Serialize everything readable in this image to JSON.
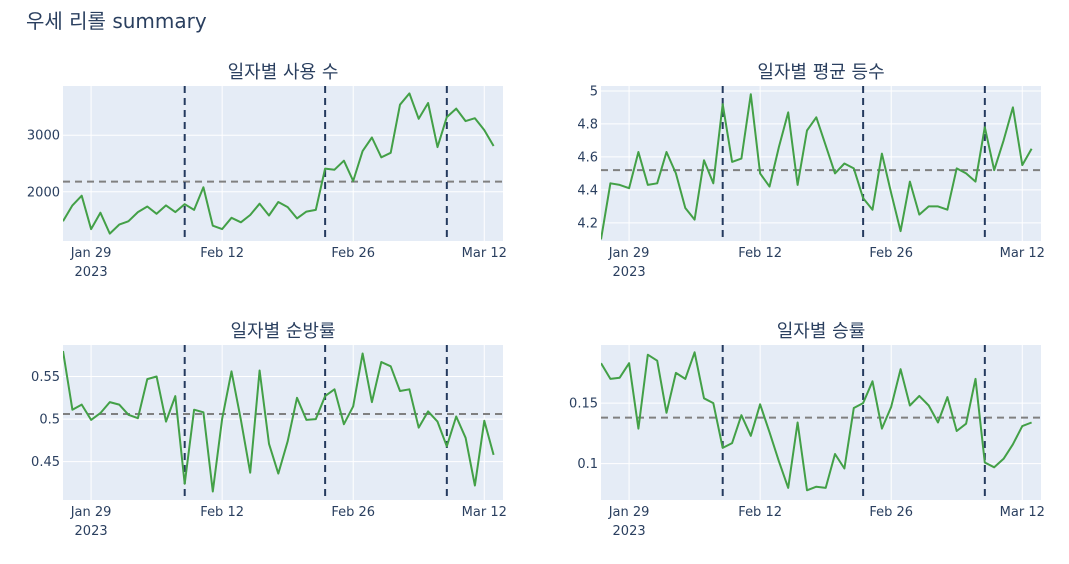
{
  "title": "우세 리롤 summary",
  "colors": {
    "plot_bg": "#e5ecf6",
    "grid": "#ffffff",
    "line": "#43a047",
    "mean_line": "#808080",
    "vline": "#243a5e",
    "text": "#2a3f5f"
  },
  "x_axis": {
    "start_date": "2023-01-26",
    "end_date": "2023-03-14",
    "ticks": [
      {
        "date": "2023-01-29",
        "label": "Jan 29",
        "sublabel": "2023"
      },
      {
        "date": "2023-02-12",
        "label": "Feb 12",
        "sublabel": ""
      },
      {
        "date": "2023-02-26",
        "label": "Feb 26",
        "sublabel": ""
      },
      {
        "date": "2023-03-12",
        "label": "Mar 12",
        "sublabel": ""
      }
    ],
    "vlines": [
      "2023-02-08",
      "2023-02-23",
      "2023-03-08"
    ]
  },
  "chart_data": [
    {
      "type": "line",
      "title": "일자별 사용 수",
      "ylim": [
        1130,
        3870
      ],
      "yticks": [
        {
          "v": 2000,
          "label": "2000"
        },
        {
          "v": 3000,
          "label": "3000"
        }
      ],
      "mean": 2180,
      "values": [
        1480,
        1760,
        1930,
        1340,
        1630,
        1260,
        1420,
        1480,
        1640,
        1740,
        1610,
        1760,
        1640,
        1780,
        1680,
        2080,
        1400,
        1340,
        1540,
        1460,
        1590,
        1790,
        1580,
        1820,
        1730,
        1530,
        1650,
        1680,
        2410,
        2390,
        2550,
        2190,
        2720,
        2960,
        2610,
        2690,
        3540,
        3740,
        3290,
        3570,
        2790,
        3320,
        3470,
        3250,
        3300,
        3090,
        2810
      ],
      "grid": true,
      "legend": "none"
    },
    {
      "type": "line",
      "title": "일자별 평균 등수",
      "ylim": [
        4.09,
        5.03
      ],
      "yticks": [
        {
          "v": 4.2,
          "label": "4.2"
        },
        {
          "v": 4.4,
          "label": "4.4"
        },
        {
          "v": 4.6,
          "label": "4.6"
        },
        {
          "v": 4.8,
          "label": "4.8"
        },
        {
          "v": 5,
          "label": "5"
        }
      ],
      "mean": 4.52,
      "values": [
        4.1,
        4.44,
        4.43,
        4.41,
        4.63,
        4.43,
        4.44,
        4.63,
        4.5,
        4.29,
        4.22,
        4.58,
        4.44,
        4.92,
        4.57,
        4.59,
        4.98,
        4.5,
        4.42,
        4.66,
        4.87,
        4.43,
        4.76,
        4.84,
        4.67,
        4.5,
        4.56,
        4.53,
        4.35,
        4.28,
        4.62,
        4.38,
        4.15,
        4.45,
        4.25,
        4.3,
        4.3,
        4.28,
        4.53,
        4.5,
        4.45,
        4.78,
        4.52,
        4.7,
        4.9,
        4.55,
        4.65
      ],
      "grid": true,
      "legend": "none"
    },
    {
      "type": "line",
      "title": "일자별 순방률",
      "ylim": [
        0.405,
        0.587
      ],
      "yticks": [
        {
          "v": 0.45,
          "label": "0.45"
        },
        {
          "v": 0.5,
          "label": "0.5"
        },
        {
          "v": 0.55,
          "label": "0.55"
        }
      ],
      "mean": 0.506,
      "values": [
        0.58,
        0.511,
        0.517,
        0.499,
        0.507,
        0.52,
        0.517,
        0.505,
        0.501,
        0.547,
        0.55,
        0.497,
        0.527,
        0.424,
        0.511,
        0.508,
        0.415,
        0.5,
        0.556,
        0.499,
        0.437,
        0.557,
        0.471,
        0.436,
        0.474,
        0.525,
        0.499,
        0.5,
        0.527,
        0.535,
        0.494,
        0.515,
        0.577,
        0.52,
        0.567,
        0.562,
        0.533,
        0.535,
        0.49,
        0.509,
        0.497,
        0.468,
        0.503,
        0.478,
        0.422,
        0.498,
        0.458
      ],
      "grid": true,
      "legend": "none"
    },
    {
      "type": "line",
      "title": "일자별 승률",
      "ylim": [
        0.07,
        0.198
      ],
      "yticks": [
        {
          "v": 0.1,
          "label": "0.1"
        },
        {
          "v": 0.15,
          "label": "0.15"
        }
      ],
      "mean": 0.138,
      "values": [
        0.183,
        0.17,
        0.171,
        0.183,
        0.129,
        0.19,
        0.185,
        0.142,
        0.175,
        0.17,
        0.192,
        0.154,
        0.15,
        0.113,
        0.117,
        0.14,
        0.123,
        0.149,
        0.126,
        0.102,
        0.08,
        0.134,
        0.078,
        0.081,
        0.08,
        0.108,
        0.096,
        0.146,
        0.15,
        0.168,
        0.129,
        0.147,
        0.178,
        0.148,
        0.156,
        0.148,
        0.134,
        0.155,
        0.127,
        0.133,
        0.17,
        0.101,
        0.097,
        0.104,
        0.116,
        0.131,
        0.134
      ],
      "grid": true,
      "legend": "none"
    }
  ]
}
